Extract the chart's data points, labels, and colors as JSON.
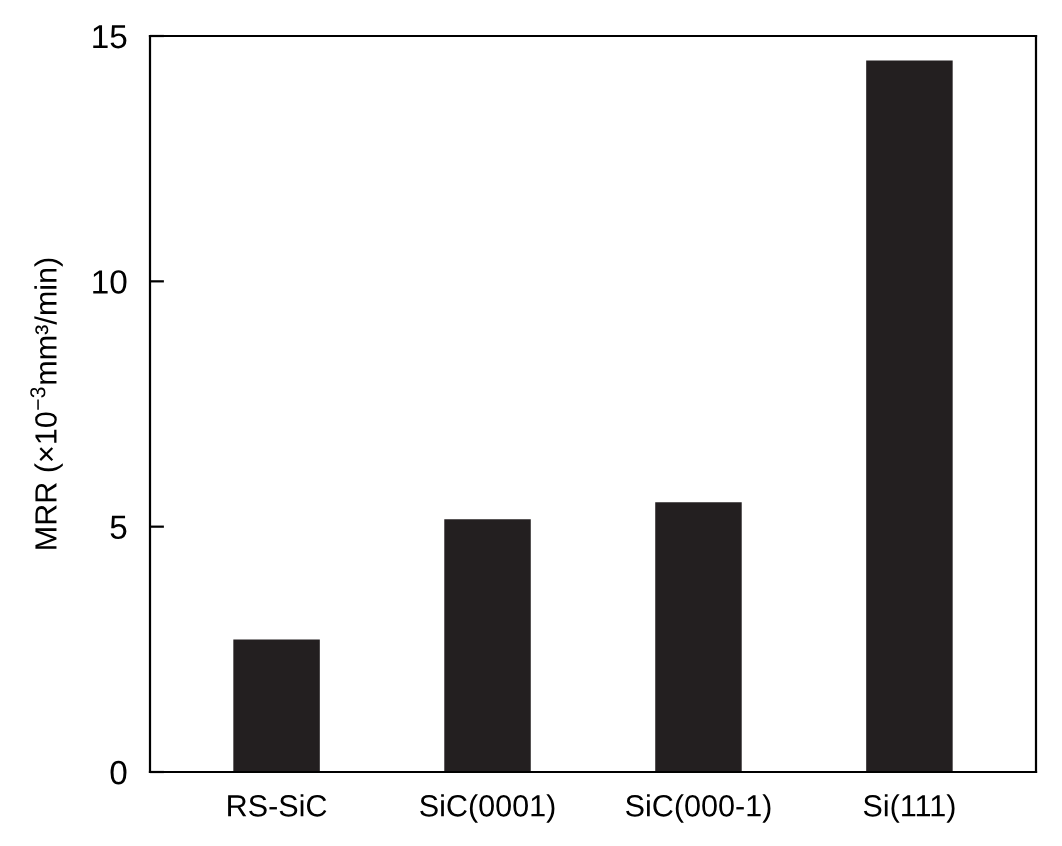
{
  "chart_data": {
    "type": "bar",
    "ylabel": "MRR (×10$^{−3}$mm³/min)",
    "categories": [
      "RS-SiC",
      "SiC(0001)",
      "SiC(000-1)",
      "Si(111)"
    ],
    "values": [
      2.7,
      5.15,
      5.5,
      14.5
    ],
    "color": "#231f20",
    "ylim": [
      0,
      15
    ],
    "yticks": [
      0,
      5,
      10,
      15
    ],
    "grid": false,
    "legend": false
  }
}
